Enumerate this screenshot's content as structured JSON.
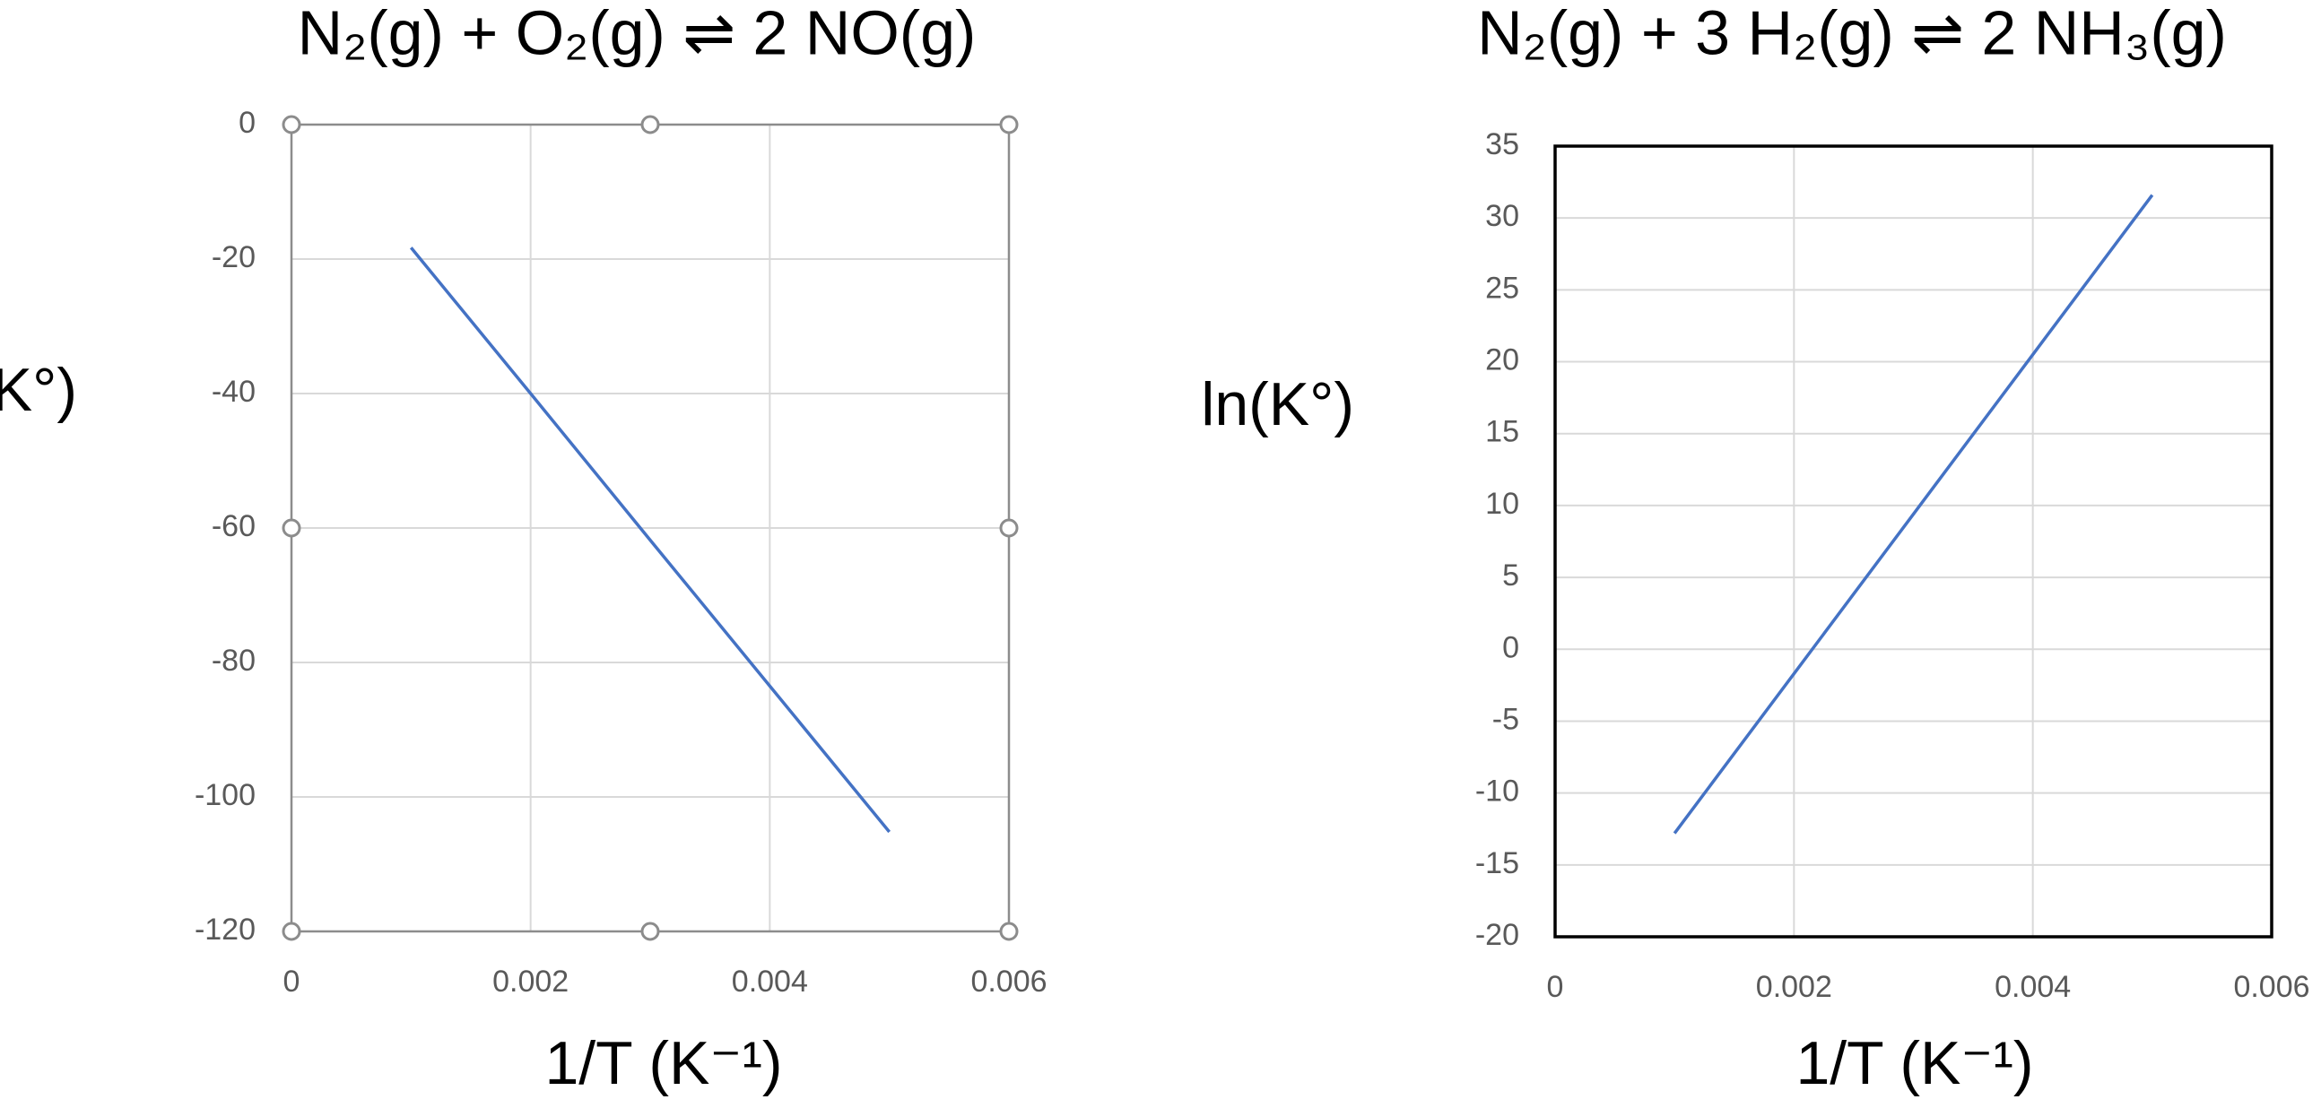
{
  "chart_data": [
    {
      "type": "line",
      "title": "N₂(g) + O₂(g) ⇌ 2 NO(g)",
      "y_label": "ln(K°)",
      "x_label": "1/T (K⁻¹)",
      "x": [
        0.001,
        0.002,
        0.003,
        0.004,
        0.005
      ],
      "series": [
        {
          "color": "#4472c4",
          "values": [
            -18.3,
            -40.0,
            -61.8,
            -83.5,
            -105.2
          ]
        }
      ],
      "xlim": [
        0,
        0.006
      ],
      "xticks": [
        0,
        0.002,
        0.004,
        0.006
      ],
      "ylim": [
        -120,
        0
      ],
      "yticks": [
        0,
        -20,
        -40,
        -60,
        -80,
        -100,
        -120
      ],
      "grid": true,
      "border_color": "#8c8c8c",
      "selected": true
    },
    {
      "type": "line",
      "title": "N₂(g) + 3 H₂(g) ⇌ 2 NH₃(g)",
      "y_label": "ln(K°)",
      "x_label": "1/T (K⁻¹)",
      "x": [
        0.001,
        0.002,
        0.003,
        0.004,
        0.005
      ],
      "series": [
        {
          "color": "#4472c4",
          "values": [
            -12.8,
            -1.7,
            9.4,
            20.5,
            31.6
          ]
        }
      ],
      "xlim": [
        0,
        0.006
      ],
      "xticks": [
        0,
        0.002,
        0.004,
        0.006
      ],
      "ylim": [
        -20,
        35
      ],
      "yticks": [
        35,
        30,
        25,
        20,
        15,
        10,
        5,
        0,
        -5,
        -10,
        -15,
        -20
      ],
      "grid": true,
      "border_color": "#000000",
      "selected": false
    }
  ]
}
